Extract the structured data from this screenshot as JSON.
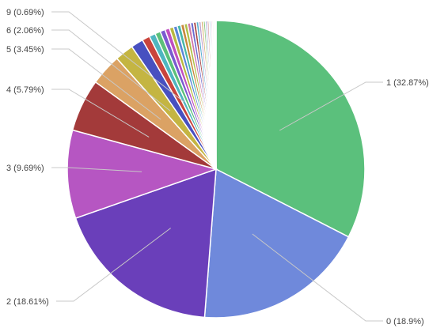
{
  "chart_data": {
    "type": "pie",
    "start_angle_deg": 0,
    "direction": "clockwise",
    "slices": [
      {
        "label": "1 (32.87%)",
        "value": 32.87,
        "color": "#5bc07c"
      },
      {
        "label": "0 (18.9%)",
        "value": 18.9,
        "color": "#6f89db"
      },
      {
        "label": "2 (18.61%)",
        "value": 18.61,
        "color": "#6a3fba"
      },
      {
        "label": "3 (9.69%)",
        "value": 9.69,
        "color": "#b656c2"
      },
      {
        "label": "4 (5.79%)",
        "value": 5.79,
        "color": "#a33a3a"
      },
      {
        "label": "5 (3.45%)",
        "value": 3.45,
        "color": "#dba264"
      },
      {
        "label": "6 (2.06%)",
        "value": 2.06,
        "color": "#c4b542"
      },
      {
        "label": "",
        "value": 1.35,
        "color": "#4850c0"
      },
      {
        "label": "",
        "value": 0.85,
        "color": "#c9443c"
      },
      {
        "label": "9 (0.69%)",
        "value": 0.69,
        "color": "#4fb6c0"
      },
      {
        "label": "",
        "value": 0.6,
        "color": "#5cc07a"
      },
      {
        "label": "",
        "value": 0.55,
        "color": "#7a5ad0"
      },
      {
        "label": "",
        "value": 0.5,
        "color": "#c04fc0"
      },
      {
        "label": "",
        "value": 0.45,
        "color": "#b8b840"
      },
      {
        "label": "",
        "value": 0.42,
        "color": "#5a86d8"
      },
      {
        "label": "",
        "value": 0.4,
        "color": "#48b8a8"
      },
      {
        "label": "",
        "value": 0.38,
        "color": "#c8883c"
      },
      {
        "label": "",
        "value": 0.36,
        "color": "#b0c048"
      },
      {
        "label": "",
        "value": 0.34,
        "color": "#d07aa8"
      },
      {
        "label": "",
        "value": 0.32,
        "color": "#6a6ad0"
      },
      {
        "label": "",
        "value": 0.3,
        "color": "#a84848"
      },
      {
        "label": "",
        "value": 0.28,
        "color": "#58b0d0"
      },
      {
        "label": "",
        "value": 0.26,
        "color": "#c0a0d0"
      },
      {
        "label": "",
        "value": 0.24,
        "color": "#d8b070"
      },
      {
        "label": "",
        "value": 0.22,
        "color": "#88c880"
      },
      {
        "label": "",
        "value": 0.2,
        "color": "#9090d0"
      },
      {
        "label": "",
        "value": 0.2,
        "color": "#d09090"
      },
      {
        "label": "",
        "value": 0.18,
        "color": "#b0d0e0"
      },
      {
        "label": "",
        "value": 0.17,
        "color": "#e0c0e0"
      },
      {
        "label": "",
        "value": 0.15,
        "color": "#e0e0b0"
      },
      {
        "label": "",
        "value": 0.14,
        "color": "#c0e0c0"
      },
      {
        "label": "",
        "value": 0.13,
        "color": "#d0d0f0"
      }
    ]
  }
}
